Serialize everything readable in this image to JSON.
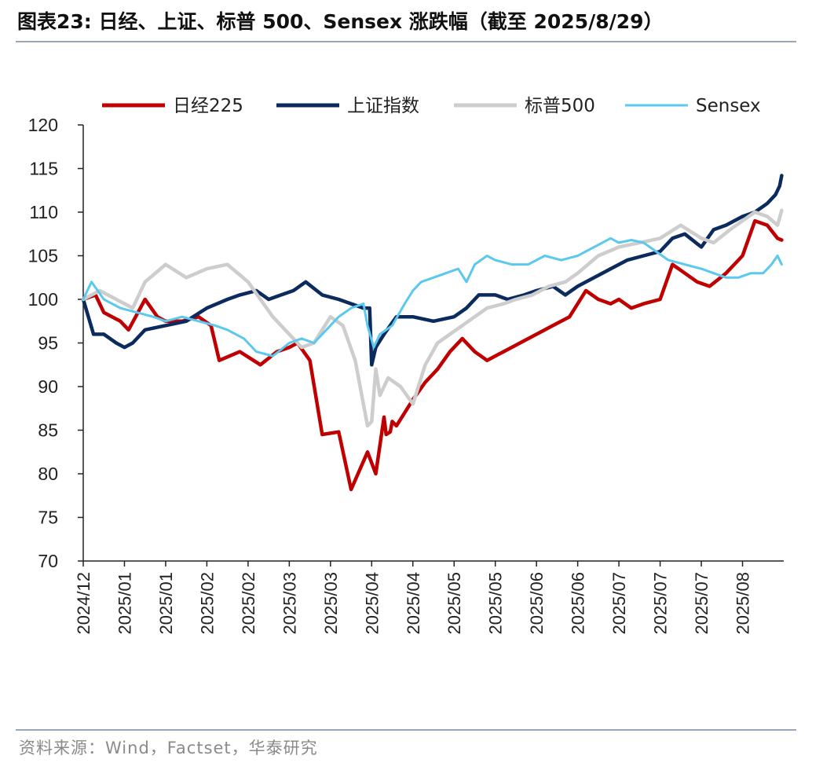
{
  "header": {
    "title": "图表23:  日经、上证、标普 500、Sensex 涨跌幅（截至 2025/8/29）"
  },
  "footer": {
    "source": "资料来源：Wind，Factset，华泰研究"
  },
  "chart_data": {
    "type": "line",
    "title": "日经、上证、标普 500、Sensex 涨跌幅（截至 2025/8/29）",
    "xlabel": "",
    "ylabel": "",
    "ylim": [
      70,
      120
    ],
    "yticks": [
      70,
      75,
      80,
      85,
      90,
      95,
      100,
      105,
      110,
      115,
      120
    ],
    "xlim": [
      0,
      17
    ],
    "xtick_labels": [
      "2024/12",
      "2025/01",
      "2025/01",
      "2025/02",
      "2025/02",
      "2025/03",
      "2025/03",
      "2025/04",
      "2025/04",
      "2025/05",
      "2025/05",
      "2025/06",
      "2025/06",
      "2025/07",
      "2025/07",
      "2025/07",
      "2025/08"
    ],
    "legend_position": "top",
    "series": [
      {
        "name": "日经225",
        "color": "#c00000",
        "x": [
          0,
          0.3,
          0.5,
          0.9,
          1.1,
          1.5,
          1.8,
          2.0,
          2.4,
          2.8,
          3.1,
          3.3,
          3.8,
          4.3,
          4.7,
          5.0,
          5.2,
          5.5,
          5.8,
          6.2,
          6.5,
          6.9,
          7.1,
          7.3,
          7.35,
          7.45,
          7.5,
          7.6,
          7.8,
          8.0,
          8.3,
          8.6,
          8.9,
          9.2,
          9.5,
          9.8,
          10.2,
          10.6,
          11.0,
          11.4,
          11.8,
          12.2,
          12.5,
          12.8,
          13.0,
          13.3,
          13.6,
          14.0,
          14.3,
          14.6,
          14.9,
          15.2,
          15.6,
          16.0,
          16.3,
          16.6,
          16.85,
          16.95
        ],
        "values": [
          100,
          100.5,
          98.5,
          97.5,
          96.5,
          100,
          98,
          97.5,
          97.5,
          98,
          97,
          93,
          94,
          92.5,
          94,
          94.5,
          95,
          93,
          84.5,
          84.8,
          78.2,
          82.5,
          80,
          86.5,
          84.5,
          84.8,
          86,
          85.5,
          87,
          88.5,
          90.5,
          92,
          94,
          95.5,
          94,
          93,
          94,
          95,
          96,
          97,
          98,
          101,
          100,
          99.5,
          100,
          99,
          99.5,
          100,
          104,
          103,
          102,
          101.5,
          103,
          105,
          109,
          108.5,
          107,
          106.8
        ]
      },
      {
        "name": "上证指数",
        "color": "#0b2a5e",
        "x": [
          0,
          0.25,
          0.5,
          0.8,
          1.0,
          1.2,
          1.5,
          2.0,
          2.5,
          3.0,
          3.5,
          3.8,
          4.2,
          4.5,
          4.8,
          5.1,
          5.4,
          5.8,
          6.2,
          6.5,
          6.8,
          6.95,
          7.0,
          7.1,
          7.3,
          7.6,
          8.0,
          8.5,
          9.0,
          9.3,
          9.6,
          10.0,
          10.3,
          10.7,
          11.0,
          11.4,
          11.7,
          12.0,
          12.4,
          12.8,
          13.2,
          13.6,
          14.0,
          14.3,
          14.6,
          15.0,
          15.3,
          15.6,
          16.0,
          16.3,
          16.6,
          16.8,
          16.9,
          16.95
        ],
        "values": [
          100,
          96,
          96,
          95,
          94.5,
          95,
          96.5,
          97,
          97.5,
          99,
          100,
          100.5,
          101,
          100,
          100.5,
          101,
          102,
          100.5,
          100,
          99.5,
          99,
          99,
          92.5,
          94.5,
          96,
          98,
          98,
          97.5,
          98,
          99,
          100.5,
          100.5,
          100,
          100.5,
          101,
          101.5,
          100.5,
          101.5,
          102.5,
          103.5,
          104.5,
          105,
          105.5,
          107,
          107.5,
          106,
          108,
          108.5,
          109.5,
          110,
          111,
          112,
          113,
          114.2
        ]
      },
      {
        "name": "标普500",
        "color": "#cdcdcd",
        "x": [
          0,
          0.4,
          0.8,
          1.2,
          1.5,
          2.0,
          2.5,
          3.0,
          3.5,
          4.0,
          4.3,
          4.6,
          5.0,
          5.3,
          5.6,
          6.0,
          6.3,
          6.6,
          6.9,
          7.0,
          7.1,
          7.2,
          7.4,
          7.7,
          8.0,
          8.3,
          8.6,
          8.9,
          9.2,
          9.5,
          9.8,
          10.2,
          10.5,
          10.9,
          11.3,
          11.7,
          12.0,
          12.5,
          13.0,
          13.5,
          14.0,
          14.5,
          15.0,
          15.3,
          15.7,
          16.0,
          16.3,
          16.6,
          16.85,
          16.95
        ],
        "values": [
          100,
          101,
          100,
          99,
          102,
          104,
          102.5,
          103.5,
          104,
          102,
          100,
          98,
          96,
          94.5,
          95,
          98,
          97,
          93,
          85.5,
          86,
          92,
          89,
          91,
          90,
          88,
          92.5,
          95,
          96,
          97,
          98,
          99,
          99.5,
          100,
          100.5,
          101.5,
          102,
          103,
          105,
          106,
          106.5,
          107,
          108.5,
          107,
          106.5,
          108,
          109,
          110,
          109.5,
          108.5,
          110.2
        ]
      },
      {
        "name": "Sensex",
        "color": "#5bc8ee",
        "x": [
          0,
          0.2,
          0.5,
          0.9,
          1.3,
          1.7,
          2.0,
          2.4,
          2.8,
          3.2,
          3.5,
          3.9,
          4.2,
          4.6,
          5.0,
          5.3,
          5.6,
          5.9,
          6.2,
          6.5,
          6.8,
          6.9,
          7.05,
          7.2,
          7.5,
          7.8,
          8.0,
          8.2,
          8.5,
          8.8,
          9.1,
          9.3,
          9.5,
          9.8,
          10.0,
          10.4,
          10.8,
          11.2,
          11.6,
          12.0,
          12.4,
          12.8,
          13.0,
          13.3,
          13.6,
          13.9,
          14.2,
          14.6,
          15.0,
          15.3,
          15.6,
          15.9,
          16.2,
          16.5,
          16.7,
          16.85,
          16.95
        ],
        "values": [
          100,
          102,
          100,
          99,
          98.5,
          98,
          97.5,
          98,
          97.5,
          97,
          96.5,
          95.5,
          94,
          93.5,
          95,
          95.5,
          95,
          96.5,
          98,
          99,
          99.5,
          97,
          94.5,
          96,
          97,
          99.5,
          101,
          102,
          102.5,
          103,
          103.5,
          102,
          104,
          105,
          104.5,
          104,
          104,
          105,
          104.5,
          105,
          106,
          107,
          106.5,
          106.8,
          106.5,
          105.5,
          104.5,
          104,
          103.5,
          103,
          102.5,
          102.5,
          103,
          103,
          104,
          105,
          104
        ]
      }
    ]
  }
}
